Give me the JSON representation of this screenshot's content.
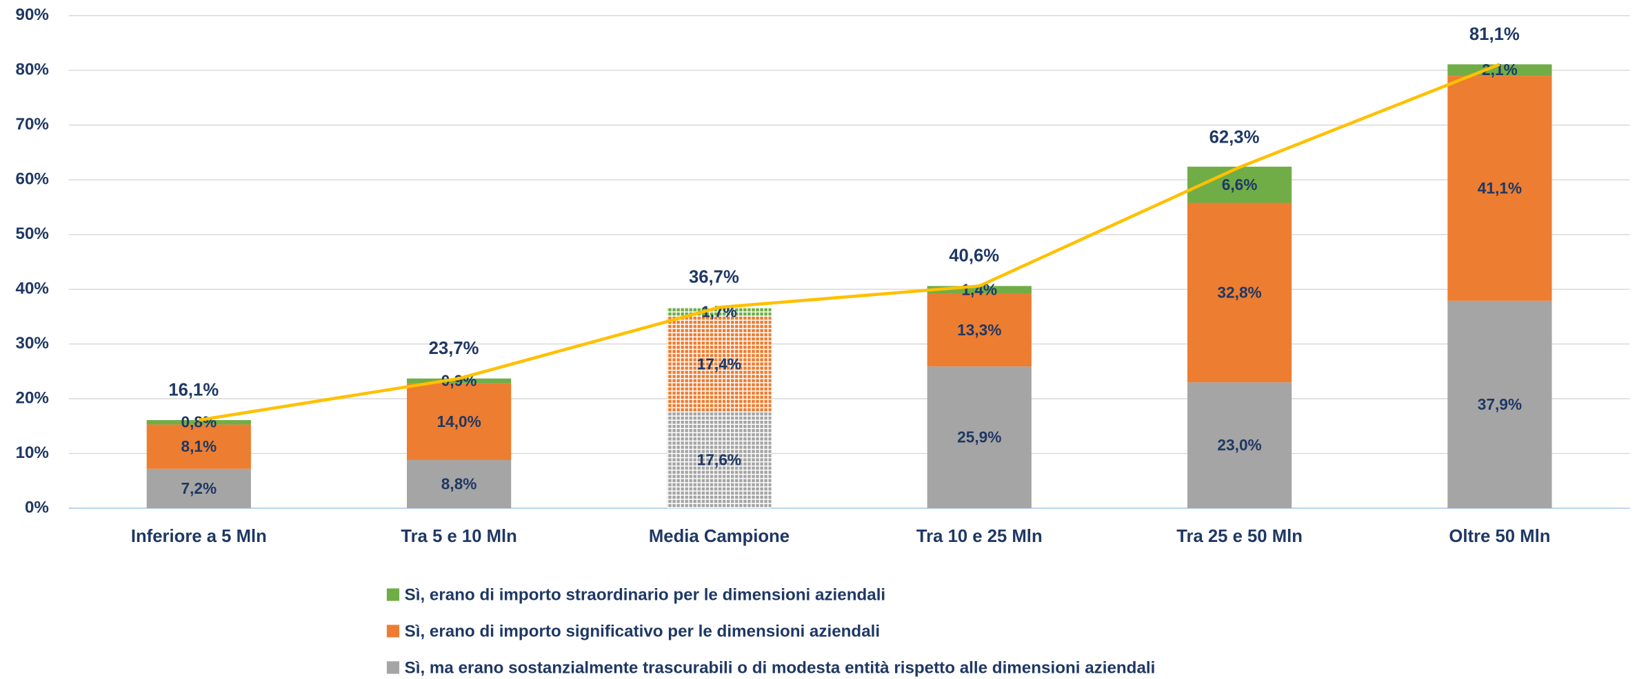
{
  "chart_data": {
    "type": "stacked_bar_line",
    "categories": [
      "Inferiore a 5 Mln",
      "Tra 5 e 10 Mln",
      "Media Campione",
      "Tra 10 e 25 Mln",
      "Tra 25 e 50 Mln",
      "Oltre 50 Mln"
    ],
    "patterned": [
      false,
      false,
      true,
      false,
      false,
      false
    ],
    "series": [
      {
        "name": "Sì, ma erano sostanzialmente trascurabili o di modesta entità rispetto alle dimensioni aziendali",
        "color": "#a5a5a5",
        "values": [
          7.2,
          8.8,
          17.6,
          25.9,
          23.0,
          37.9
        ],
        "value_labels": [
          "7,2%",
          "8,8%",
          "17,6%",
          "25,9%",
          "23,0%",
          "37,9%"
        ]
      },
      {
        "name": "Sì, erano di importo significativo per le dimensioni aziendali",
        "color": "#ed7d31",
        "values": [
          8.1,
          14.0,
          17.4,
          13.3,
          32.8,
          41.1
        ],
        "value_labels": [
          "8,1%",
          "14,0%",
          "17,4%",
          "13,3%",
          "32,8%",
          "41,1%"
        ]
      },
      {
        "name": "Sì, erano di importo straordinario per le dimensioni aziendali",
        "color": "#70ad47",
        "values": [
          0.8,
          0.9,
          1.7,
          1.4,
          6.6,
          2.1
        ],
        "value_labels": [
          "0,8%",
          "0,9%",
          "1,7%",
          "1,4%",
          "6,6%",
          "2,1%"
        ]
      }
    ],
    "line": {
      "color": "#ffc000",
      "values": [
        16.1,
        23.7,
        36.7,
        40.6,
        62.3,
        81.1
      ],
      "value_labels": [
        "16,1%",
        "23,7%",
        "36,7%",
        "40,6%",
        "62,3%",
        "81,1%"
      ]
    },
    "ylim": [
      0,
      90
    ],
    "yticks": [
      {
        "value": 0,
        "label": "0%"
      },
      {
        "value": 10,
        "label": "10%"
      },
      {
        "value": 20,
        "label": "20%"
      },
      {
        "value": 30,
        "label": "30%"
      },
      {
        "value": 40,
        "label": "40%"
      },
      {
        "value": 50,
        "label": "50%"
      },
      {
        "value": 60,
        "label": "60%"
      },
      {
        "value": 70,
        "label": "70%"
      },
      {
        "value": 80,
        "label": "80%"
      },
      {
        "value": 90,
        "label": "90%"
      }
    ],
    "grid": true,
    "legend": "bottom"
  }
}
